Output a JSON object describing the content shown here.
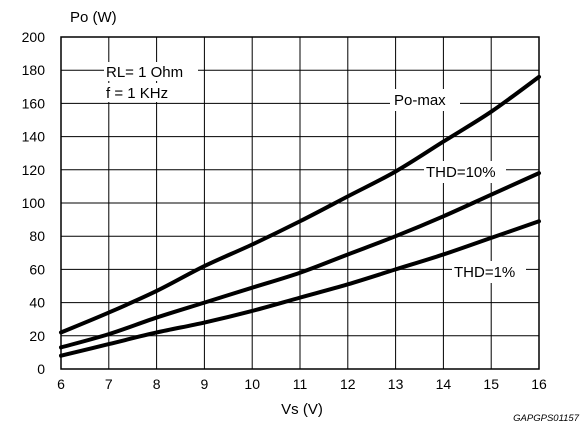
{
  "chart_data": {
    "type": "line",
    "ylabel": "Po (W)",
    "xlabel": "Vs (V)",
    "xlim": [
      6,
      16
    ],
    "ylim": [
      0,
      200
    ],
    "x_ticks": [
      6,
      7,
      8,
      9,
      10,
      11,
      12,
      13,
      14,
      15,
      16
    ],
    "y_ticks": [
      0,
      20,
      40,
      60,
      80,
      100,
      120,
      140,
      160,
      180,
      200
    ],
    "grid": true,
    "conditions": [
      "RL= 1 Ohm",
      "f = 1 KHz"
    ],
    "figure_code": "GAPGPS01157",
    "x": [
      6,
      7,
      8,
      9,
      10,
      11,
      12,
      13,
      14,
      15,
      16
    ],
    "series": [
      {
        "name": "Po-max",
        "values": [
          22,
          34,
          47,
          62,
          75,
          89,
          104,
          119,
          137,
          155,
          176
        ]
      },
      {
        "name": "THD=10%",
        "values": [
          13,
          21,
          31,
          40,
          49,
          58,
          69,
          80,
          92,
          105,
          118
        ]
      },
      {
        "name": "THD=1%",
        "values": [
          8,
          15,
          22,
          28,
          35,
          43,
          51,
          60,
          69,
          79,
          89
        ]
      }
    ]
  }
}
